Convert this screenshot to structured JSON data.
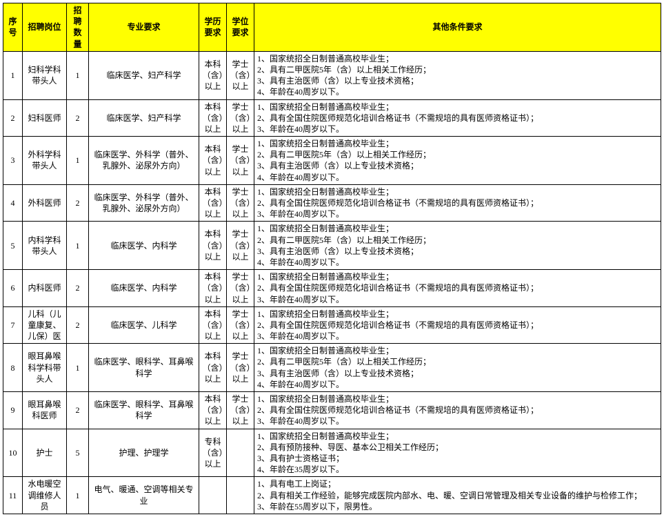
{
  "columns": [
    {
      "key": "seq",
      "label": "序号"
    },
    {
      "key": "pos",
      "label": "招聘岗位"
    },
    {
      "key": "cnt",
      "label": "招聘数量"
    },
    {
      "key": "major",
      "label": "专业要求"
    },
    {
      "key": "edu",
      "label": "学历要求"
    },
    {
      "key": "deg",
      "label": "学位要求"
    },
    {
      "key": "other",
      "label": "其他条件要求"
    }
  ],
  "header_bg": "#ffff00",
  "border_color": "#000000",
  "font_family": "SimSun",
  "font_size_pt": 9,
  "rows": [
    {
      "seq": "1",
      "pos": "妇科学科带头人",
      "cnt": "1",
      "major": "临床医学、妇产科学",
      "edu": "本科（含）以上",
      "deg": "学士（含）以上",
      "other": "1、国家统招全日制普通高校毕业生；\n2、具有二甲医院5年（含）以上相关工作经历；\n3、具有主治医师（含）以上专业技术资格；\n4、年龄在40周岁以下。"
    },
    {
      "seq": "2",
      "pos": "妇科医师",
      "cnt": "2",
      "major": "临床医学、妇产科学",
      "edu": "本科（含）以上",
      "deg": "学士（含）以上",
      "other": "1、国家统招全日制普通高校毕业生；\n2、具有全国住院医师规范化培训合格证书（不需规培的具有医师资格证书）；\n3、年龄在40周岁以下。"
    },
    {
      "seq": "3",
      "pos": "外科学科带头人",
      "cnt": "1",
      "major": "临床医学、外科学（普外、乳腺外、泌尿外方向）",
      "edu": "本科（含）以上",
      "deg": "学士（含）以上",
      "other": "1、国家统招全日制普通高校毕业生；\n2、具有二甲医院5年（含）以上相关工作经历；\n3、具有主治医师（含）以上专业技术资格；\n4、年龄在40周岁以下。"
    },
    {
      "seq": "4",
      "pos": "外科医师",
      "cnt": "2",
      "major": "临床医学、外科学（普外、乳腺外、泌尿外方向）",
      "edu": "本科（含）以上",
      "deg": "学士（含）以上",
      "other": "1、国家统招全日制普通高校毕业生；\n2、具有全国住院医师规范化培训合格证书（不需规培的具有医师资格证书）；\n3、年龄在40周岁以下。"
    },
    {
      "seq": "5",
      "pos": "内科学科带头人",
      "cnt": "1",
      "major": "临床医学、内科学",
      "edu": "本科（含）以上",
      "deg": "学士（含）以上",
      "other": "1、国家统招全日制普通高校毕业生；\n2、具有二甲医院5年（含）以上相关工作经历；\n3、具有主治医师（含）以上专业技术资格；\n4、年龄在40周岁以下。"
    },
    {
      "seq": "6",
      "pos": "内科医师",
      "cnt": "2",
      "major": "临床医学、内科学",
      "edu": "本科（含）以上",
      "deg": "学士（含）以上",
      "other": "1、国家统招全日制普通高校毕业生；\n2、具有全国住院医师规范化培训合格证书（不需规培的具有医师资格证书）；\n3、年龄在40周岁以下。"
    },
    {
      "seq": "7",
      "pos": "儿科（儿童康复、儿保）医",
      "cnt": "2",
      "major": "临床医学、儿科学",
      "edu": "本科（含）以上",
      "deg": "学士（含）以上",
      "other": "1、国家统招全日制普通高校毕业生；\n2、具有全国住院医师规范化培训合格证书（不需规培的具有医师资格证书）；\n3、年龄在40周岁以下。"
    },
    {
      "seq": "8",
      "pos": "眼耳鼻喉科学科带头人",
      "cnt": "1",
      "major": "临床医学、眼科学、耳鼻喉科学",
      "edu": "本科（含）以上",
      "deg": "学士（含）以上",
      "other": "1、国家统招全日制普通高校毕业生；\n2、具有二甲医院5年（含）以上相关工作经历；\n3、具有主治医师（含）以上专业技术资格；\n4、年龄在40周岁以下。"
    },
    {
      "seq": "9",
      "pos": "眼耳鼻喉科医师",
      "cnt": "2",
      "major": "临床医学、眼科学、耳鼻喉科学",
      "edu": "本科（含）以上",
      "deg": "学士（含）以上",
      "other": "1、国家统招全日制普通高校毕业生；\n2、具有全国住院医师规范化培训合格证书（不需规培的具有医师资格证书）；\n3、年龄在40周岁以下。"
    },
    {
      "seq": "10",
      "pos": "护士",
      "cnt": "5",
      "major": "护理、护理学",
      "edu": "专科（含）以上",
      "deg": "",
      "other": "1、国家统招全日制普通高校毕业生；\n2、具有预防接种、导医、基本公卫相关工作经历；\n3、具有护士资格证书；\n4、年龄在35周岁以下。"
    },
    {
      "seq": "11",
      "pos": "水电暖空调维修人员",
      "cnt": "1",
      "major": "电气、暖通、空调等相关专业",
      "edu": "",
      "deg": "",
      "other": "1、具有电工上岗证；\n2、具有相关工作经验，能够完成医院内部水、电、暖、空调日常管理及相关专业设备的维护与检修工作；\n3、年龄在55周岁以下，限男性。"
    }
  ]
}
